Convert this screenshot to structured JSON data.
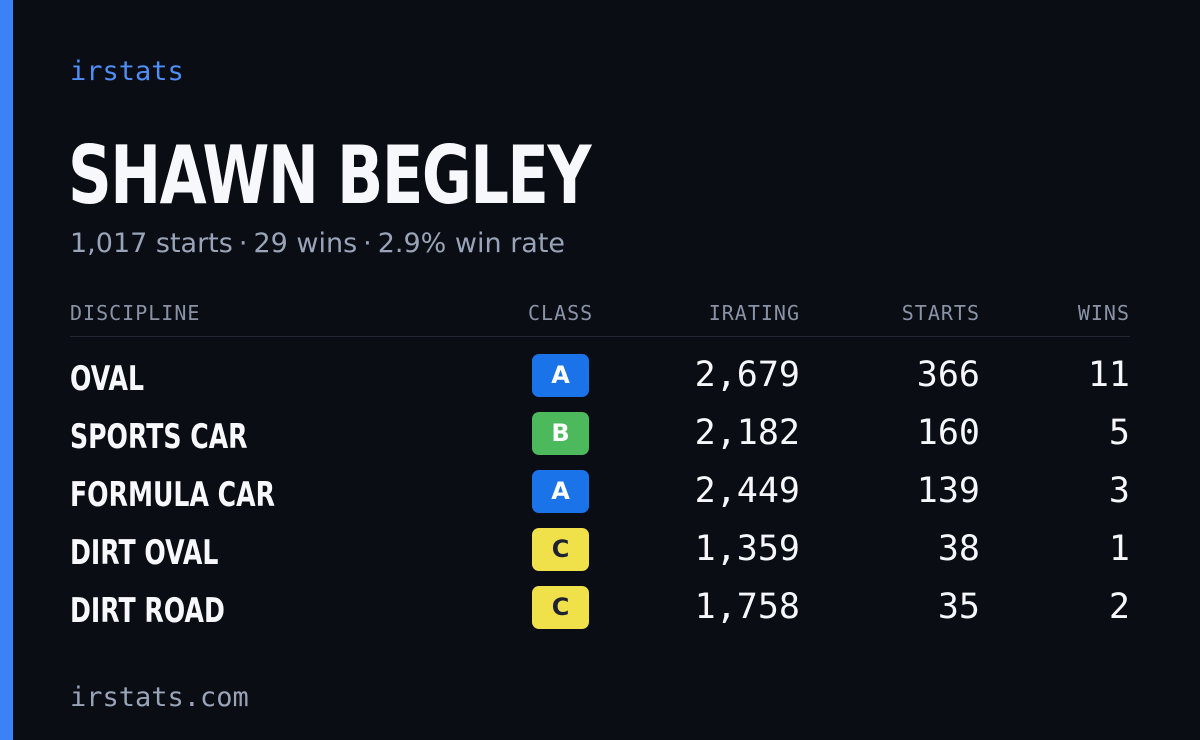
{
  "brand": "irstats",
  "driver": {
    "name": "SHAWN BEGLEY",
    "starts": "1,017 starts",
    "wins": "29 wins",
    "win_rate": "2.9% win rate",
    "separator": "·"
  },
  "table": {
    "headers": {
      "discipline": "DISCIPLINE",
      "class": "CLASS",
      "irating": "IRATING",
      "starts": "STARTS",
      "wins": "WINS"
    },
    "rows": [
      {
        "discipline": "OVAL",
        "class": "A",
        "class_color": "#1a73e8",
        "class_text_color": "#ffffff",
        "irating": "2,679",
        "starts": "366",
        "wins": "11"
      },
      {
        "discipline": "SPORTS CAR",
        "class": "B",
        "class_color": "#4cba5c",
        "class_text_color": "#ffffff",
        "irating": "2,182",
        "starts": "160",
        "wins": "5"
      },
      {
        "discipline": "FORMULA CAR",
        "class": "A",
        "class_color": "#1a73e8",
        "class_text_color": "#ffffff",
        "irating": "2,449",
        "starts": "139",
        "wins": "3"
      },
      {
        "discipline": "DIRT OVAL",
        "class": "C",
        "class_color": "#f0e04a",
        "class_text_color": "#1e2230",
        "irating": "1,359",
        "starts": "38",
        "wins": "1"
      },
      {
        "discipline": "DIRT ROAD",
        "class": "C",
        "class_color": "#f0e04a",
        "class_text_color": "#1e2230",
        "irating": "1,758",
        "starts": "35",
        "wins": "2"
      }
    ]
  },
  "footer": "irstats.com",
  "colors": {
    "accent": "#3b82f6",
    "background": "#0a0d14",
    "brand": "#4f8ef7"
  }
}
